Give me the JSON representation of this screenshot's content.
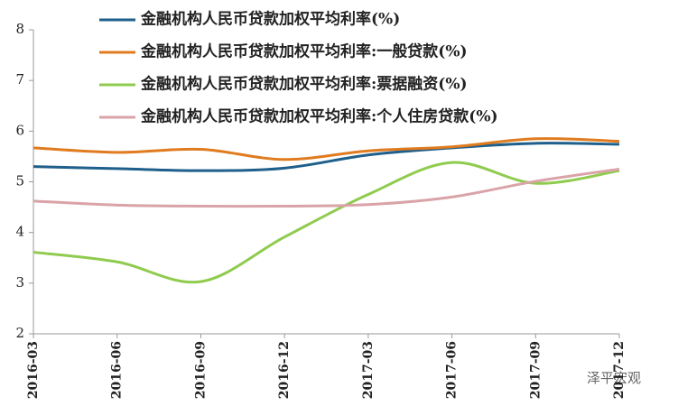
{
  "chart_data": {
    "type": "line",
    "categories": [
      "2016-03",
      "2016-06",
      "2016-09",
      "2016-12",
      "2017-03",
      "2017-06",
      "2017-09",
      "2017-12"
    ],
    "series": [
      {
        "name": "金融机构人民币贷款加权平均利率(%)",
        "color": "#1f5f8b",
        "values": [
          5.3,
          5.26,
          5.22,
          5.27,
          5.53,
          5.67,
          5.76,
          5.74
        ]
      },
      {
        "name": "金融机构人民币贷款加权平均利率:一般贷款(%)",
        "color": "#e07b1f",
        "values": [
          5.67,
          5.58,
          5.64,
          5.44,
          5.61,
          5.69,
          5.85,
          5.8
        ]
      },
      {
        "name": "金融机构人民币贷款加权平均利率:票据融资(%)",
        "color": "#8fcb4e",
        "values": [
          3.61,
          3.42,
          3.03,
          3.91,
          4.75,
          5.38,
          4.97,
          5.22
        ]
      },
      {
        "name": "金融机构人民币贷款加权平均利率:个人住房贷款(%)",
        "color": "#d9a3a8",
        "values": [
          4.62,
          4.54,
          4.52,
          4.52,
          4.55,
          4.7,
          5.01,
          5.25
        ]
      }
    ],
    "ylim": [
      2,
      8
    ],
    "yticks": [
      2,
      3,
      4,
      5,
      6,
      7,
      8
    ],
    "smooth": true,
    "watermark": "泽平宏观"
  }
}
